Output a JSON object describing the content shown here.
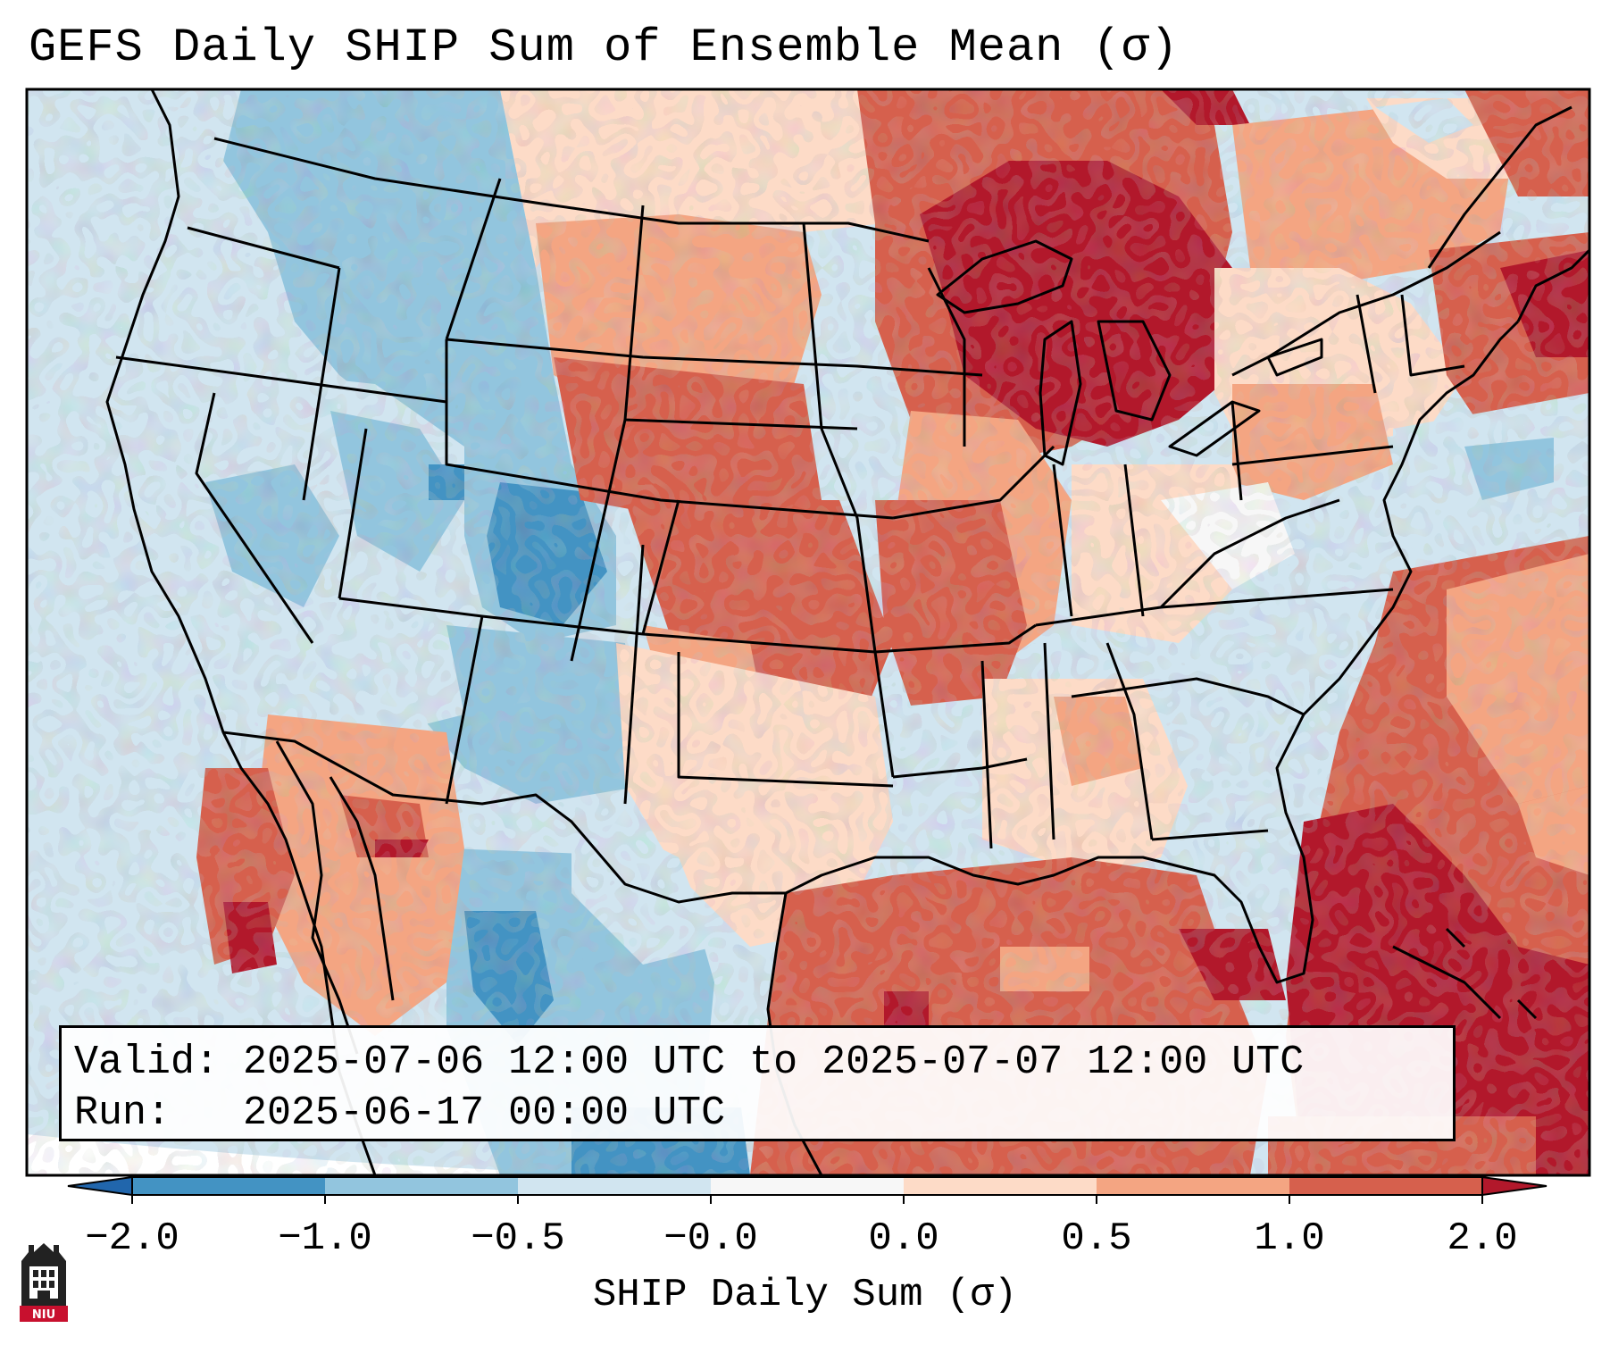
{
  "title": "GEFS Daily SHIP Sum of Ensemble Mean (σ)",
  "info": {
    "valid_label": "Valid:",
    "valid_value": "2025-07-06 12:00 UTC to 2025-07-07 12:00 UTC",
    "run_label": "Run:",
    "run_value": "2025-06-17 00:00 UTC"
  },
  "colorbar": {
    "label": "SHIP Daily Sum (σ)",
    "ticks": [
      "−2.0",
      "−1.0",
      "−0.5",
      "−0.0",
      "0.0",
      "0.5",
      "1.0",
      "2.0"
    ],
    "colors": {
      "below_-2": "#2166ac",
      "-2_to_-1": "#4393c3",
      "-1_to_-0.5": "#92c5de",
      "-0.5_to_0": "#d1e5f0",
      "zero_band": "#f7f7f7",
      "0_to_0.5": "#fddbc7",
      "0.5_to_1": "#f4a582",
      "1_to_2": "#d6604d",
      "above_2": "#b2182b"
    }
  },
  "logo": {
    "text": "NIU",
    "icon": "university-castle-icon"
  }
}
